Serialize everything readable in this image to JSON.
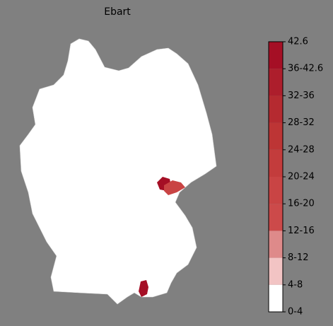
{
  "title": "Ebart",
  "colorbar": {
    "labels": [
      "42.6",
      "36-42.6",
      "32-36",
      "28-32",
      "24-28",
      "20-24",
      "16-20",
      "12-16",
      "8-12",
      "4-8",
      "0-4"
    ],
    "colors": [
      "#a50f25",
      "#ad1e2c",
      "#b52a30",
      "#bd3535",
      "#c33c3c",
      "#c94444",
      "#cc4a4a",
      "#de8a8a",
      "#f2c4c4",
      "#ffffff"
    ]
  }
}
